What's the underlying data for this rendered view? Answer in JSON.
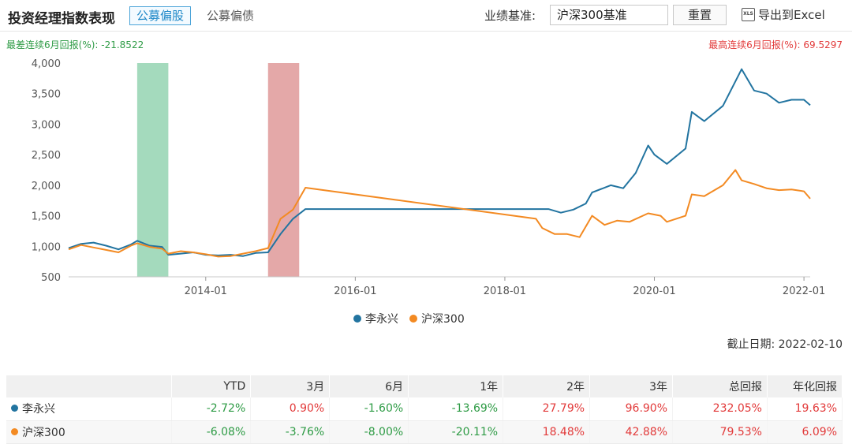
{
  "header": {
    "title": "投资经理指数表现",
    "tabs": [
      {
        "label": "公募偏股",
        "active": true
      },
      {
        "label": "公募偏债",
        "active": false
      }
    ],
    "benchmark_label": "业绩基准:",
    "benchmark_value": "沪深300基准",
    "reset_label": "重置",
    "export_label": "导出到Excel",
    "export_icon_text": "XLS"
  },
  "annotations": {
    "worst": "最差连续6月回报(%): -21.8522",
    "best": "最高连续6月回报(%): 69.5297"
  },
  "as_of": "截止日期: 2022-02-10",
  "colors": {
    "manager": "#2274a0",
    "benchmark": "#f38a22",
    "worst_band": "#9fd8b9",
    "best_band": "#e3a3a3"
  },
  "chart_data": {
    "type": "line",
    "ylim": [
      500,
      4000
    ],
    "yticks": [
      "500",
      "1,000",
      "1,500",
      "2,000",
      "2,500",
      "3,000",
      "3,500",
      "4,000"
    ],
    "xticks": [
      "2014-01",
      "2016-01",
      "2018-01",
      "2020-01",
      "2022-01"
    ],
    "xlim": [
      "2012-03",
      "2022-02"
    ],
    "bands": [
      {
        "kind": "worst",
        "from": "2013-02",
        "to": "2013-07"
      },
      {
        "kind": "best",
        "from": "2014-11",
        "to": "2015-04"
      }
    ],
    "series": [
      {
        "name": "李永兴",
        "color": "#2274a0",
        "points": [
          [
            "2012-03",
            970
          ],
          [
            "2012-05",
            1040
          ],
          [
            "2012-07",
            1060
          ],
          [
            "2012-09",
            1010
          ],
          [
            "2012-11",
            950
          ],
          [
            "2013-01",
            1030
          ],
          [
            "2013-02",
            1090
          ],
          [
            "2013-04",
            1010
          ],
          [
            "2013-06",
            990
          ],
          [
            "2013-07",
            860
          ],
          [
            "2013-09",
            880
          ],
          [
            "2013-11",
            900
          ],
          [
            "2014-01",
            860
          ],
          [
            "2014-03",
            850
          ],
          [
            "2014-05",
            860
          ],
          [
            "2014-07",
            840
          ],
          [
            "2014-09",
            890
          ],
          [
            "2014-11",
            900
          ],
          [
            "2015-01",
            1200
          ],
          [
            "2015-03",
            1450
          ],
          [
            "2015-05",
            1610
          ],
          [
            "2016-01",
            1610
          ],
          [
            "2017-01",
            1610
          ],
          [
            "2018-01",
            1610
          ],
          [
            "2018-06",
            1610
          ],
          [
            "2018-08",
            1610
          ],
          [
            "2018-10",
            1550
          ],
          [
            "2018-12",
            1600
          ],
          [
            "2019-02",
            1700
          ],
          [
            "2019-03",
            1880
          ],
          [
            "2019-06",
            2000
          ],
          [
            "2019-08",
            1950
          ],
          [
            "2019-10",
            2200
          ],
          [
            "2019-12",
            2650
          ],
          [
            "2020-01",
            2500
          ],
          [
            "2020-03",
            2350
          ],
          [
            "2020-06",
            2600
          ],
          [
            "2020-07",
            3200
          ],
          [
            "2020-09",
            3050
          ],
          [
            "2020-12",
            3300
          ],
          [
            "2021-02",
            3700
          ],
          [
            "2021-03",
            3900
          ],
          [
            "2021-05",
            3550
          ],
          [
            "2021-07",
            3500
          ],
          [
            "2021-09",
            3350
          ],
          [
            "2021-11",
            3400
          ],
          [
            "2022-01",
            3400
          ],
          [
            "2022-02",
            3310
          ]
        ]
      },
      {
        "name": "沪深300",
        "color": "#f38a22",
        "points": [
          [
            "2012-03",
            950
          ],
          [
            "2012-05",
            1020
          ],
          [
            "2012-07",
            980
          ],
          [
            "2012-09",
            940
          ],
          [
            "2012-11",
            900
          ],
          [
            "2013-01",
            1010
          ],
          [
            "2013-02",
            1050
          ],
          [
            "2013-04",
            990
          ],
          [
            "2013-06",
            960
          ],
          [
            "2013-07",
            880
          ],
          [
            "2013-09",
            920
          ],
          [
            "2013-11",
            900
          ],
          [
            "2014-01",
            870
          ],
          [
            "2014-03",
            830
          ],
          [
            "2014-05",
            840
          ],
          [
            "2014-07",
            880
          ],
          [
            "2014-09",
            920
          ],
          [
            "2014-11",
            970
          ],
          [
            "2015-01",
            1450
          ],
          [
            "2015-03",
            1600
          ],
          [
            "2015-05",
            1960
          ],
          [
            "2018-06",
            1450
          ],
          [
            "2018-07",
            1300
          ],
          [
            "2018-09",
            1200
          ],
          [
            "2018-11",
            1200
          ],
          [
            "2019-01",
            1150
          ],
          [
            "2019-03",
            1500
          ],
          [
            "2019-05",
            1350
          ],
          [
            "2019-07",
            1420
          ],
          [
            "2019-09",
            1400
          ],
          [
            "2019-12",
            1540
          ],
          [
            "2020-02",
            1500
          ],
          [
            "2020-03",
            1400
          ],
          [
            "2020-06",
            1500
          ],
          [
            "2020-07",
            1850
          ],
          [
            "2020-09",
            1820
          ],
          [
            "2020-12",
            2000
          ],
          [
            "2021-02",
            2250
          ],
          [
            "2021-03",
            2080
          ],
          [
            "2021-05",
            2020
          ],
          [
            "2021-07",
            1950
          ],
          [
            "2021-09",
            1920
          ],
          [
            "2021-11",
            1930
          ],
          [
            "2022-01",
            1900
          ],
          [
            "2022-02",
            1780
          ]
        ]
      }
    ]
  },
  "table": {
    "headers": [
      "",
      "YTD",
      "3月",
      "6月",
      "1年",
      "2年",
      "3年",
      "总回报",
      "年化回报"
    ],
    "rows": [
      {
        "name": "李永兴",
        "color": "#2274a0",
        "values": [
          "-2.72%",
          "0.90%",
          "-1.60%",
          "-13.69%",
          "27.79%",
          "96.90%",
          "232.05%",
          "19.63%"
        ]
      },
      {
        "name": "沪深300",
        "color": "#f38a22",
        "values": [
          "-6.08%",
          "-3.76%",
          "-8.00%",
          "-20.11%",
          "18.48%",
          "42.88%",
          "79.53%",
          "6.09%"
        ]
      }
    ]
  }
}
